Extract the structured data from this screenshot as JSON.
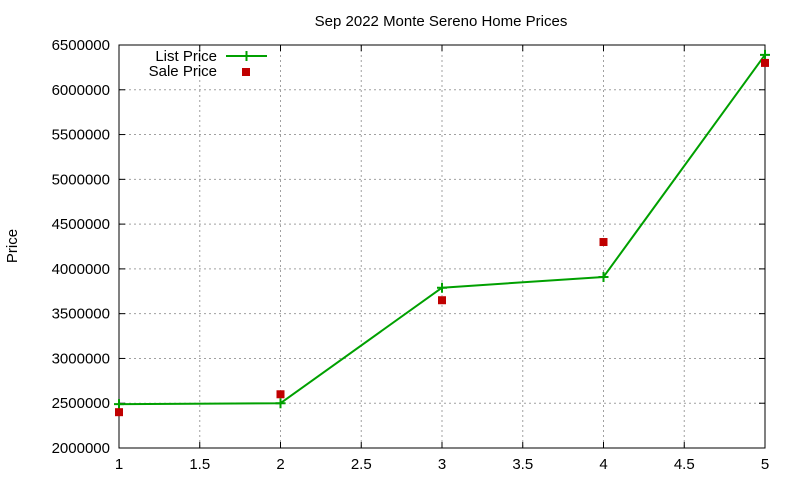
{
  "chart_data": {
    "type": "line",
    "title": "Sep 2022 Monte Sereno Home Prices",
    "xlabel": "",
    "ylabel": "Price",
    "xlim": [
      1,
      5
    ],
    "ylim": [
      2000000,
      6500000
    ],
    "xticks": [
      "1",
      "1.5",
      "2",
      "2.5",
      "3",
      "3.5",
      "4",
      "4.5",
      "5"
    ],
    "yticks": [
      "2000000",
      "2500000",
      "3000000",
      "3500000",
      "4000000",
      "4500000",
      "5000000",
      "5500000",
      "6000000",
      "6500000"
    ],
    "grid": true,
    "legend_position": "top-left",
    "series": [
      {
        "name": "List Price",
        "type": "line",
        "color": "#00a000",
        "marker": "plus",
        "x": [
          1,
          2,
          3,
          4,
          5
        ],
        "y": [
          2490000,
          2500000,
          3790000,
          3910000,
          6390000
        ]
      },
      {
        "name": "Sale Price",
        "type": "scatter",
        "color": "#c00000",
        "marker": "square",
        "x": [
          1,
          2,
          3,
          4,
          5
        ],
        "y": [
          2400000,
          2600000,
          3650000,
          4300000,
          6300000
        ]
      }
    ]
  }
}
